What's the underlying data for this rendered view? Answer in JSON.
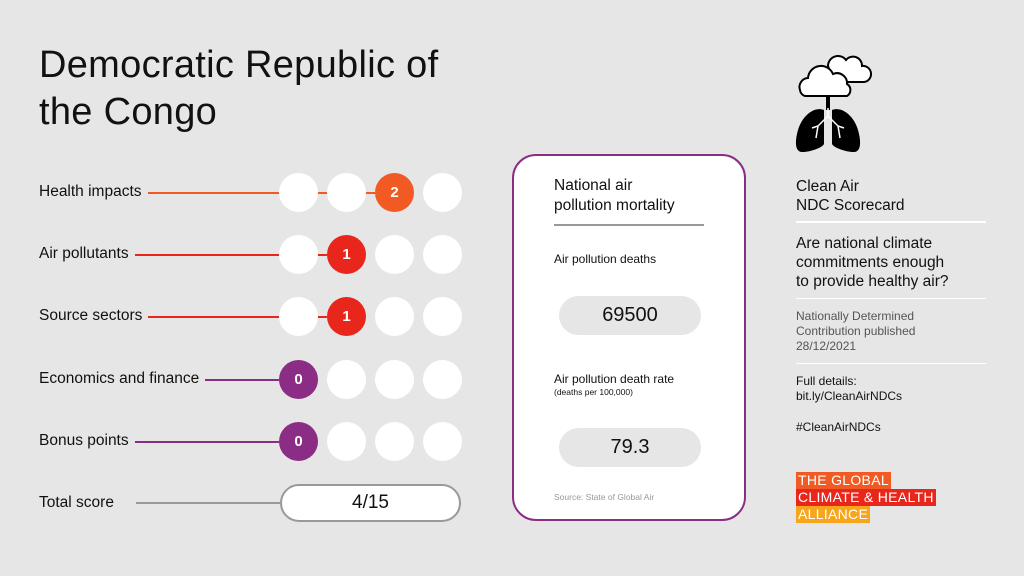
{
  "title": "Democratic Republic of the Congo",
  "colors": {
    "health": "#f15a22",
    "red": "#e8261c",
    "purple": "#8b2c85"
  },
  "rows": [
    {
      "label": "Health impacts",
      "score": "2",
      "color": "#f15a22"
    },
    {
      "label": "Air pollutants",
      "score": "1",
      "color": "#e8261c"
    },
    {
      "label": "Source sectors",
      "score": "1",
      "color": "#e8261c"
    },
    {
      "label": "Economics and finance",
      "score": "0",
      "color": "#8b2c85"
    },
    {
      "label": "Bonus points",
      "score": "0",
      "color": "#8b2c85"
    }
  ],
  "total": {
    "label": "Total score",
    "value": "4/15"
  },
  "card": {
    "title_1": "National air",
    "title_2": "pollution mortality",
    "deaths_label": "Air pollution deaths",
    "deaths_value": "69500",
    "rate_label": "Air pollution death rate",
    "rate_unit": "(deaths per 100,000)",
    "rate_value": "79.3",
    "source": "Source: State of Global Air"
  },
  "side": {
    "icon": "cloud-lungs-icon",
    "title_1": "Clean Air",
    "title_2": "NDC Scorecard",
    "question_1": "Are national climate",
    "question_2": "commitments enough",
    "question_3": "to provide healthy air?",
    "ndc_1": "Nationally Determined",
    "ndc_2": "Contribution published",
    "ndc_3": "28/12/2021",
    "details_1": "Full details:",
    "details_2": "bit.ly/CleanAirNDCs",
    "hashtag": "#CleanAirNDCs",
    "logo": [
      "THE GLOBAL",
      "CLIMATE & HEALTH",
      "ALLIANCE"
    ]
  }
}
